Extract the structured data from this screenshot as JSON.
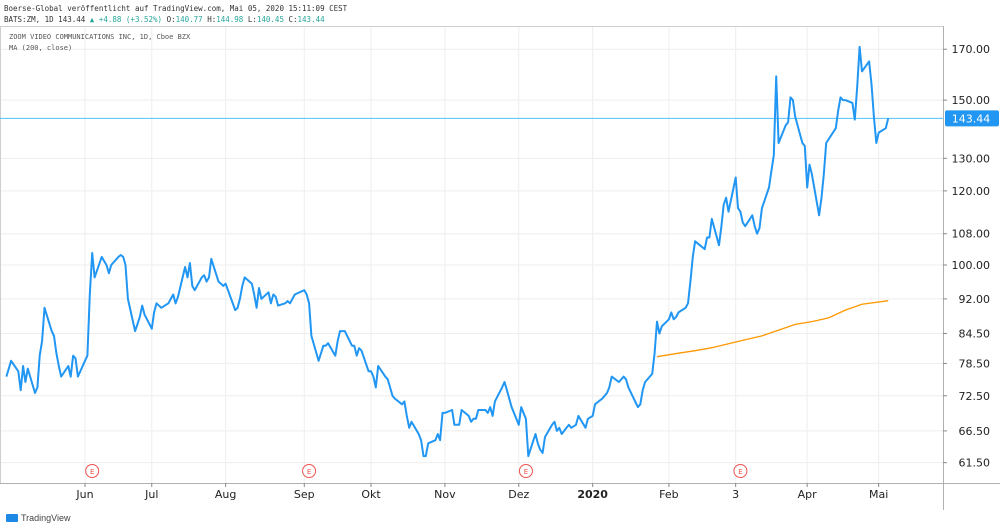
{
  "header": {
    "line1": "Boerse-Global veröffentlicht auf TradingView.com, Mai 05, 2020 15:11:09 CEST",
    "line2_prefix": "BATS:ZM, 1D 143.44",
    "line2_change": "▲ +4.88 (+3.52%)",
    "line2_o_label": "O:",
    "line2_o": "140.77",
    "line2_h_label": "H:",
    "line2_h": "144.98",
    "line2_l_label": "L:",
    "line2_l": "140.45",
    "line2_c_label": "C:",
    "line2_c": "143.44"
  },
  "chart_title": "ZOOM VIDEO COMMUNICATIONS INC, 1D, Cboe BZX",
  "ma_label": "MA (200, close)",
  "footer": {
    "brand": "TradingView"
  },
  "colors": {
    "price": "#2196f3",
    "ma": "#ff9800",
    "last_line": "#4fc3f7",
    "earnings": "#ef5350",
    "grid": "#eeeeee"
  },
  "chart_data": {
    "type": "line",
    "x_tick_labels": [
      "Jun",
      "Jul",
      "Aug",
      "Sep",
      "Okt",
      "Nov",
      "Dez",
      "2020",
      "Feb",
      "3",
      "Apr",
      "Mai"
    ],
    "y_tick_labels": [
      "170.00",
      "150.00",
      "130.00",
      "120.00",
      "108.00",
      "100.00",
      "92.00",
      "84.50",
      "78.50",
      "72.50",
      "66.50",
      "61.50"
    ],
    "y_ticks": [
      170,
      150,
      130,
      120,
      108,
      100,
      92,
      84.5,
      78.5,
      72.5,
      66.5,
      61.5
    ],
    "y_scale": "log",
    "ylim": [
      58.5,
      180
    ],
    "last_price": 143.44,
    "last_price_label": "143.44",
    "earnings_marker": "E",
    "earnings_dates": [
      "2019-06-06",
      "2019-09-05",
      "2019-12-05",
      "2020-03-04"
    ],
    "series": [
      {
        "name": "",
        "color": "#2196f3",
        "points": [
          [
            "2019-05-01",
            76
          ],
          [
            "2019-05-03",
            79
          ],
          [
            "2019-05-06",
            77
          ],
          [
            "2019-05-07",
            73.5
          ],
          [
            "2019-05-08",
            78
          ],
          [
            "2019-05-09",
            75
          ],
          [
            "2019-05-10",
            77.5
          ],
          [
            "2019-05-13",
            73
          ],
          [
            "2019-05-14",
            74
          ],
          [
            "2019-05-15",
            80
          ],
          [
            "2019-05-16",
            83
          ],
          [
            "2019-05-17",
            90
          ],
          [
            "2019-05-20",
            85
          ],
          [
            "2019-05-21",
            84
          ],
          [
            "2019-05-22",
            80.5
          ],
          [
            "2019-05-23",
            78
          ],
          [
            "2019-05-24",
            76
          ],
          [
            "2019-05-27",
            78
          ],
          [
            "2019-05-28",
            76
          ],
          [
            "2019-05-29",
            80
          ],
          [
            "2019-05-30",
            79.5
          ],
          [
            "2019-05-31",
            76
          ],
          [
            "2019-06-03",
            79
          ],
          [
            "2019-06-04",
            80
          ],
          [
            "2019-06-05",
            93
          ],
          [
            "2019-06-06",
            103
          ],
          [
            "2019-06-07",
            97
          ],
          [
            "2019-06-10",
            102
          ],
          [
            "2019-06-11",
            101
          ],
          [
            "2019-06-12",
            100
          ],
          [
            "2019-06-13",
            98
          ],
          [
            "2019-06-14",
            100
          ],
          [
            "2019-06-17",
            102
          ],
          [
            "2019-06-18",
            102.5
          ],
          [
            "2019-06-19",
            102
          ],
          [
            "2019-06-20",
            100
          ],
          [
            "2019-06-21",
            92
          ],
          [
            "2019-06-24",
            85
          ],
          [
            "2019-06-25",
            86.5
          ],
          [
            "2019-06-26",
            88
          ],
          [
            "2019-06-27",
            90.5
          ],
          [
            "2019-06-28",
            88.5
          ],
          [
            "2019-07-01",
            85.5
          ],
          [
            "2019-07-02",
            89
          ],
          [
            "2019-07-03",
            91
          ],
          [
            "2019-07-05",
            90
          ],
          [
            "2019-07-08",
            91
          ],
          [
            "2019-07-09",
            92
          ],
          [
            "2019-07-10",
            93
          ],
          [
            "2019-07-11",
            91
          ],
          [
            "2019-07-12",
            92.5
          ],
          [
            "2019-07-15",
            99.5
          ],
          [
            "2019-07-16",
            97
          ],
          [
            "2019-07-17",
            100.5
          ],
          [
            "2019-07-18",
            95
          ],
          [
            "2019-07-19",
            94
          ],
          [
            "2019-07-22",
            97
          ],
          [
            "2019-07-23",
            97.5
          ],
          [
            "2019-07-24",
            96
          ],
          [
            "2019-07-25",
            97
          ],
          [
            "2019-07-26",
            101.5
          ],
          [
            "2019-07-29",
            96
          ],
          [
            "2019-07-30",
            95.5
          ],
          [
            "2019-07-31",
            95
          ],
          [
            "2019-08-01",
            95.5
          ],
          [
            "2019-08-02",
            94
          ],
          [
            "2019-08-05",
            89.5
          ],
          [
            "2019-08-06",
            90
          ],
          [
            "2019-08-07",
            92
          ],
          [
            "2019-08-08",
            95
          ],
          [
            "2019-08-09",
            97
          ],
          [
            "2019-08-12",
            95.5
          ],
          [
            "2019-08-13",
            93
          ],
          [
            "2019-08-14",
            90
          ],
          [
            "2019-08-15",
            94.5
          ],
          [
            "2019-08-16",
            92
          ],
          [
            "2019-08-19",
            93.5
          ],
          [
            "2019-08-20",
            91
          ],
          [
            "2019-08-21",
            93
          ],
          [
            "2019-08-22",
            92.5
          ],
          [
            "2019-08-23",
            90.5
          ],
          [
            "2019-08-26",
            91
          ],
          [
            "2019-08-27",
            91.5
          ],
          [
            "2019-08-28",
            91
          ],
          [
            "2019-08-29",
            92
          ],
          [
            "2019-08-30",
            93
          ],
          [
            "2019-09-03",
            94
          ],
          [
            "2019-09-04",
            93
          ],
          [
            "2019-09-05",
            91
          ],
          [
            "2019-09-06",
            84
          ],
          [
            "2019-09-09",
            79
          ],
          [
            "2019-09-10",
            80.5
          ],
          [
            "2019-09-11",
            82
          ],
          [
            "2019-09-12",
            82
          ],
          [
            "2019-09-13",
            82.5
          ],
          [
            "2019-09-16",
            80
          ],
          [
            "2019-09-17",
            83
          ],
          [
            "2019-09-18",
            85
          ],
          [
            "2019-09-19",
            85
          ],
          [
            "2019-09-20",
            85
          ],
          [
            "2019-09-23",
            82
          ],
          [
            "2019-09-24",
            82
          ],
          [
            "2019-09-25",
            80
          ],
          [
            "2019-09-26",
            81.5
          ],
          [
            "2019-09-27",
            81
          ],
          [
            "2019-09-30",
            77
          ],
          [
            "2019-10-01",
            77
          ],
          [
            "2019-10-02",
            76
          ],
          [
            "2019-10-03",
            74
          ],
          [
            "2019-10-04",
            78
          ],
          [
            "2019-10-07",
            76
          ],
          [
            "2019-10-08",
            75.5
          ],
          [
            "2019-10-09",
            74
          ],
          [
            "2019-10-10",
            72.5
          ],
          [
            "2019-10-11",
            72
          ],
          [
            "2019-10-14",
            71
          ],
          [
            "2019-10-15",
            71.5
          ],
          [
            "2019-10-16",
            69
          ],
          [
            "2019-10-17",
            67
          ],
          [
            "2019-10-18",
            68
          ],
          [
            "2019-10-21",
            66
          ],
          [
            "2019-10-22",
            65
          ],
          [
            "2019-10-23",
            62.5
          ],
          [
            "2019-10-24",
            62.5
          ],
          [
            "2019-10-25",
            64.5
          ],
          [
            "2019-10-28",
            65
          ],
          [
            "2019-10-29",
            66
          ],
          [
            "2019-10-30",
            65
          ],
          [
            "2019-10-31",
            69.5
          ],
          [
            "2019-11-01",
            69.5
          ],
          [
            "2019-11-04",
            70
          ],
          [
            "2019-11-05",
            67.5
          ],
          [
            "2019-11-06",
            67.5
          ],
          [
            "2019-11-07",
            67.5
          ],
          [
            "2019-11-08",
            70
          ],
          [
            "2019-11-11",
            69
          ],
          [
            "2019-11-12",
            68
          ],
          [
            "2019-11-13",
            68.5
          ],
          [
            "2019-11-14",
            68.5
          ],
          [
            "2019-11-15",
            70
          ],
          [
            "2019-11-18",
            70
          ],
          [
            "2019-11-19",
            69.5
          ],
          [
            "2019-11-20",
            70.5
          ],
          [
            "2019-11-21",
            69
          ],
          [
            "2019-11-22",
            71.5
          ],
          [
            "2019-11-25",
            74
          ],
          [
            "2019-11-26",
            75
          ],
          [
            "2019-11-27",
            73.5
          ],
          [
            "2019-11-29",
            70.5
          ],
          [
            "2019-12-02",
            67.5
          ],
          [
            "2019-12-03",
            70.5
          ],
          [
            "2019-12-04",
            69.5
          ],
          [
            "2019-12-05",
            68.5
          ],
          [
            "2019-12-06",
            62.5
          ],
          [
            "2019-12-09",
            66
          ],
          [
            "2019-12-10",
            64.5
          ],
          [
            "2019-12-11",
            63.5
          ],
          [
            "2019-12-12",
            63
          ],
          [
            "2019-12-13",
            65.5
          ],
          [
            "2019-12-16",
            67.5
          ],
          [
            "2019-12-17",
            68
          ],
          [
            "2019-12-18",
            66.5
          ],
          [
            "2019-12-19",
            67
          ],
          [
            "2019-12-20",
            66
          ],
          [
            "2019-12-23",
            67.5
          ],
          [
            "2019-12-24",
            67
          ],
          [
            "2019-12-26",
            67.5
          ],
          [
            "2019-12-27",
            69
          ],
          [
            "2019-12-30",
            67
          ],
          [
            "2019-12-31",
            68.5
          ],
          [
            "2020-01-02",
            69
          ],
          [
            "2020-01-03",
            71
          ],
          [
            "2020-01-06",
            72
          ],
          [
            "2020-01-07",
            72.5
          ],
          [
            "2020-01-08",
            73
          ],
          [
            "2020-01-09",
            74
          ],
          [
            "2020-01-10",
            76
          ],
          [
            "2020-01-13",
            75
          ],
          [
            "2020-01-14",
            75.5
          ],
          [
            "2020-01-15",
            76
          ],
          [
            "2020-01-16",
            75.5
          ],
          [
            "2020-01-17",
            74
          ],
          [
            "2020-01-21",
            70.5
          ],
          [
            "2020-01-22",
            71
          ],
          [
            "2020-01-23",
            73.5
          ],
          [
            "2020-01-24",
            75
          ],
          [
            "2020-01-27",
            76.5
          ],
          [
            "2020-01-28",
            80.5
          ],
          [
            "2020-01-29",
            87
          ],
          [
            "2020-01-30",
            84.5
          ],
          [
            "2020-01-31",
            86
          ],
          [
            "2020-02-03",
            87.5
          ],
          [
            "2020-02-04",
            89
          ],
          [
            "2020-02-05",
            87.5
          ],
          [
            "2020-02-06",
            88
          ],
          [
            "2020-02-07",
            89
          ],
          [
            "2020-02-10",
            90
          ],
          [
            "2020-02-11",
            91
          ],
          [
            "2020-02-12",
            96
          ],
          [
            "2020-02-13",
            102
          ],
          [
            "2020-02-14",
            106
          ],
          [
            "2020-02-18",
            104
          ],
          [
            "2020-02-19",
            107
          ],
          [
            "2020-02-20",
            107
          ],
          [
            "2020-02-21",
            112
          ],
          [
            "2020-02-24",
            105
          ],
          [
            "2020-02-25",
            110
          ],
          [
            "2020-02-26",
            116
          ],
          [
            "2020-02-27",
            118
          ],
          [
            "2020-02-28",
            114
          ],
          [
            "2020-03-02",
            124
          ],
          [
            "2020-03-03",
            115
          ],
          [
            "2020-03-04",
            114
          ],
          [
            "2020-03-05",
            111
          ],
          [
            "2020-03-06",
            110
          ],
          [
            "2020-03-09",
            113
          ],
          [
            "2020-03-10",
            110
          ],
          [
            "2020-03-11",
            108
          ],
          [
            "2020-03-12",
            109.5
          ],
          [
            "2020-03-13",
            115
          ],
          [
            "2020-03-16",
            121
          ],
          [
            "2020-03-17",
            126
          ],
          [
            "2020-03-18",
            131
          ],
          [
            "2020-03-19",
            159
          ],
          [
            "2020-03-20",
            135
          ],
          [
            "2020-03-23",
            141
          ],
          [
            "2020-03-24",
            142
          ],
          [
            "2020-03-25",
            151
          ],
          [
            "2020-03-26",
            150
          ],
          [
            "2020-03-27",
            144
          ],
          [
            "2020-03-30",
            135
          ],
          [
            "2020-03-31",
            134
          ],
          [
            "2020-04-01",
            121
          ],
          [
            "2020-04-02",
            128
          ],
          [
            "2020-04-03",
            125
          ],
          [
            "2020-04-06",
            113
          ],
          [
            "2020-04-07",
            118
          ],
          [
            "2020-04-08",
            125
          ],
          [
            "2020-04-09",
            135
          ],
          [
            "2020-04-13",
            140
          ],
          [
            "2020-04-14",
            146
          ],
          [
            "2020-04-15",
            151
          ],
          [
            "2020-04-16",
            150
          ],
          [
            "2020-04-17",
            150
          ],
          [
            "2020-04-20",
            149
          ],
          [
            "2020-04-21",
            143
          ],
          [
            "2020-04-22",
            155
          ],
          [
            "2020-04-23",
            171
          ],
          [
            "2020-04-24",
            161
          ],
          [
            "2020-04-27",
            165
          ],
          [
            "2020-04-28",
            156
          ],
          [
            "2020-04-29",
            144
          ],
          [
            "2020-04-30",
            135
          ],
          [
            "2020-05-01",
            138.5
          ],
          [
            "2020-05-04",
            140
          ],
          [
            "2020-05-05",
            143.44
          ]
        ]
      },
      {
        "name": "MA (200, close)",
        "color": "#ff9800",
        "points": [
          [
            "2020-01-29",
            79.8
          ],
          [
            "2020-02-07",
            80.5
          ],
          [
            "2020-02-14",
            81
          ],
          [
            "2020-02-21",
            81.6
          ],
          [
            "2020-02-28",
            82.4
          ],
          [
            "2020-03-06",
            83.2
          ],
          [
            "2020-03-13",
            84
          ],
          [
            "2020-03-20",
            85.2
          ],
          [
            "2020-03-27",
            86.4
          ],
          [
            "2020-04-03",
            87
          ],
          [
            "2020-04-10",
            87.8
          ],
          [
            "2020-04-17",
            89.5
          ],
          [
            "2020-04-24",
            90.8
          ],
          [
            "2020-05-05",
            91.6
          ]
        ]
      }
    ]
  }
}
